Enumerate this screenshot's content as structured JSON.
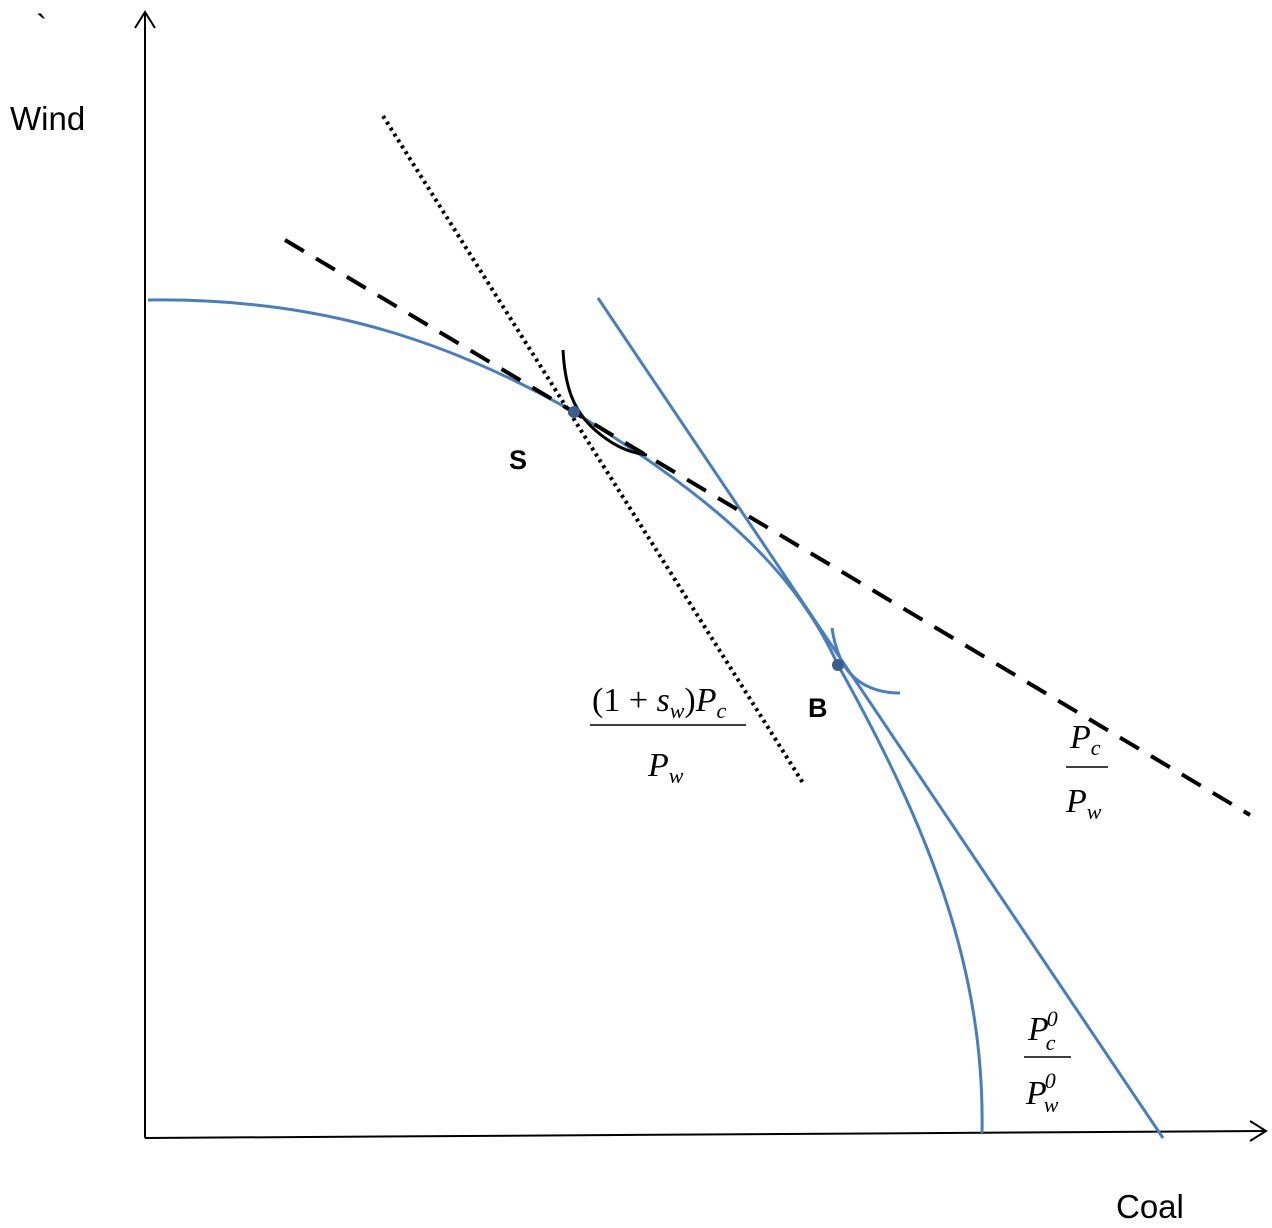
{
  "stray_mark": "`",
  "axes": {
    "y_label": "Wind",
    "x_label": "Coal"
  },
  "points": {
    "s_label": "S",
    "b_label": "B"
  },
  "ratio_labels": {
    "subsidy": {
      "num_prefix": "(1 + ",
      "num_s": "s",
      "num_s_sub": "w",
      "num_mid": ")",
      "num_p": "P",
      "num_p_sub": "c",
      "den_p": "P",
      "den_p_sub": "w"
    },
    "market": {
      "num_p": "P",
      "num_p_sub": "c",
      "den_p": "P",
      "den_p_sub": "w"
    },
    "initial": {
      "num_p": "P",
      "num_p_sub": "c",
      "num_p_sup": "0",
      "den_p": "P",
      "den_p_sub": "w",
      "den_p_sup": "0"
    }
  },
  "colors": {
    "frontier": "#4a7ebb",
    "axes": "#000000",
    "lines": "#000000"
  }
}
